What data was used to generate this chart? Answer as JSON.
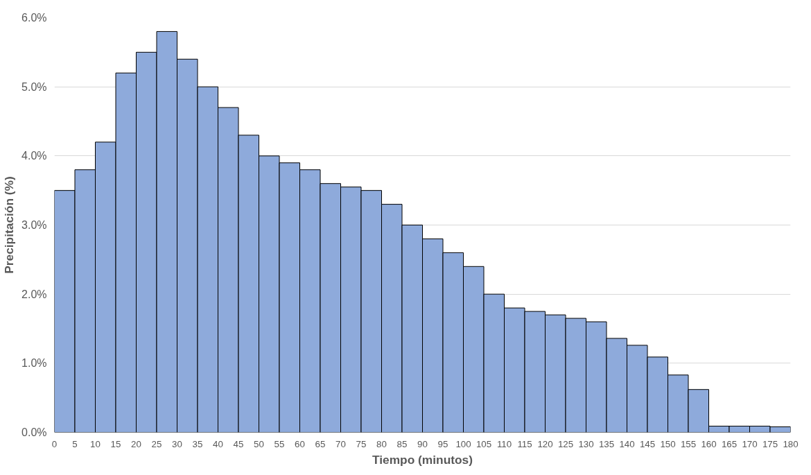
{
  "chart_data": {
    "type": "histogram",
    "xlabel": "Tiempo (minutos)",
    "ylabel": "Precipitación (%)",
    "bins": [
      0,
      5,
      10,
      15,
      20,
      25,
      30,
      35,
      40,
      45,
      50,
      55,
      60,
      65,
      70,
      75,
      80,
      85,
      90,
      95,
      100,
      105,
      110,
      115,
      120,
      125,
      130,
      135,
      140,
      145,
      150,
      155,
      160,
      165,
      170,
      175,
      180
    ],
    "values": [
      3.5,
      3.8,
      4.2,
      5.2,
      5.5,
      5.8,
      5.4,
      5.0,
      4.7,
      4.3,
      4.0,
      3.9,
      3.8,
      3.6,
      3.55,
      3.5,
      3.3,
      3.0,
      2.8,
      2.6,
      2.4,
      2.0,
      1.8,
      1.75,
      1.7,
      1.65,
      1.6,
      1.36,
      1.26,
      1.09,
      0.83,
      0.62,
      0.09,
      0.09,
      0.09,
      0.08
    ],
    "color": "#8eaadb",
    "xlim": [
      0,
      180
    ],
    "xticks": [
      0,
      5,
      10,
      15,
      20,
      25,
      30,
      35,
      40,
      45,
      50,
      55,
      60,
      65,
      70,
      75,
      80,
      85,
      90,
      95,
      100,
      105,
      110,
      115,
      120,
      125,
      130,
      135,
      140,
      145,
      150,
      155,
      160,
      165,
      170,
      175,
      180
    ],
    "ylim": [
      0,
      6
    ],
    "yticks": [
      {
        "value": 0,
        "label": "0.0%"
      },
      {
        "value": 1,
        "label": "1.0%"
      },
      {
        "value": 2,
        "label": "2.0%"
      },
      {
        "value": 3,
        "label": "3.0%"
      },
      {
        "value": 4,
        "label": "4.0%"
      },
      {
        "value": 5,
        "label": "5.0%"
      },
      {
        "value": 6,
        "label": "6.0%"
      }
    ],
    "grid": "y"
  }
}
